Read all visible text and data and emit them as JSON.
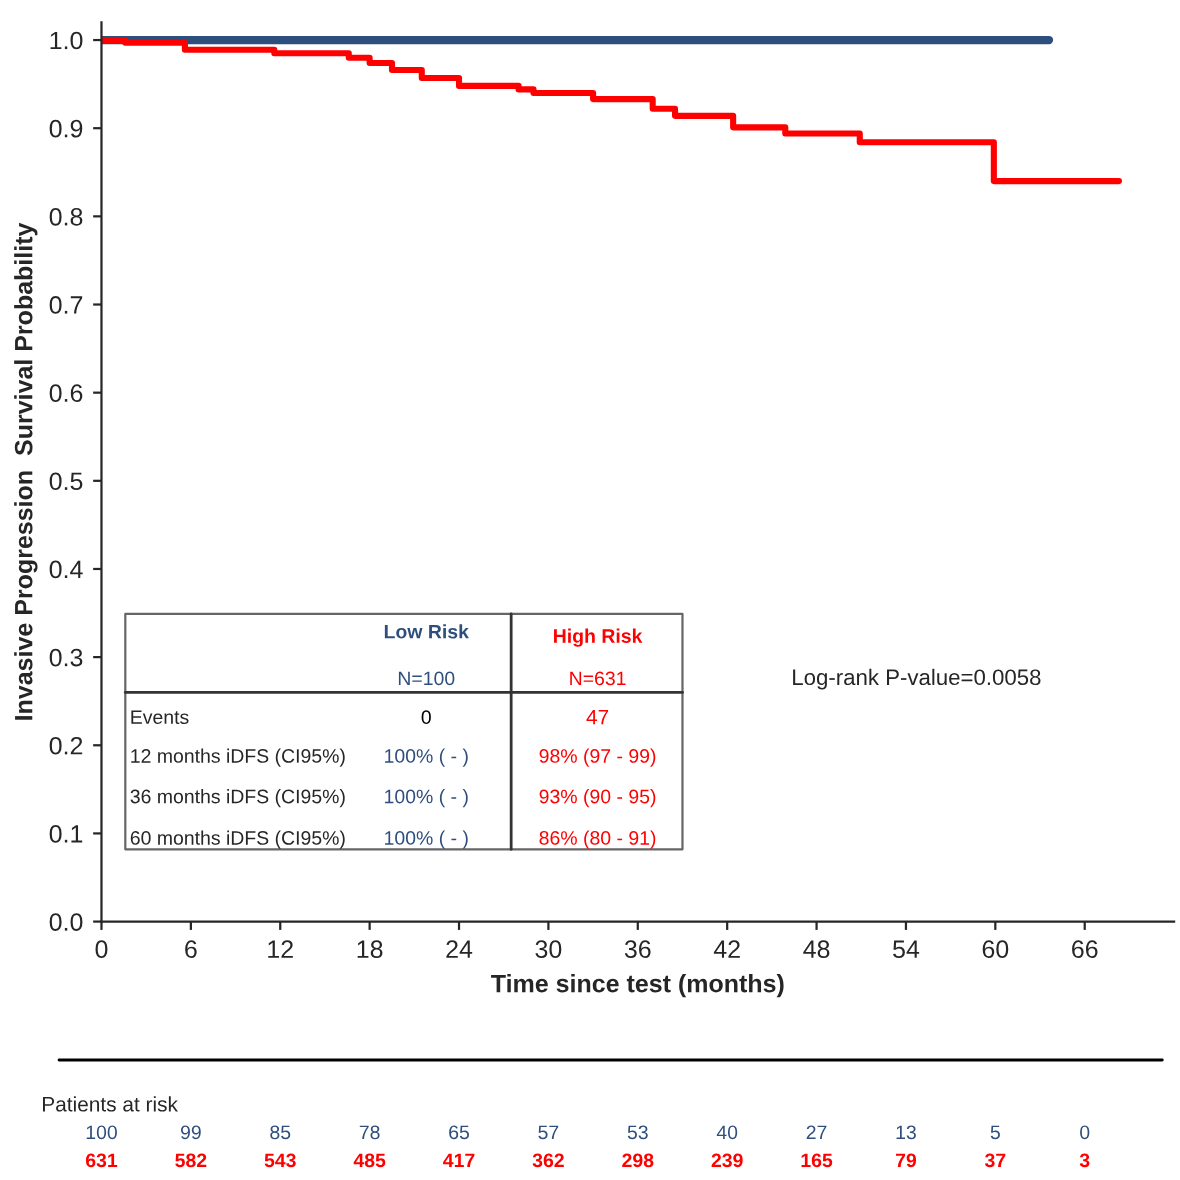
{
  "chart_data": {
    "type": "step",
    "xlabel": "Time since test (months)",
    "ylabel": "Invasive Progression  Survival Probability",
    "series": [
      {
        "name": "Low Risk",
        "color": "#2e4e7e",
        "x": [
          0,
          63.6
        ],
        "values": [
          1.0,
          1.0
        ]
      },
      {
        "name": "High Risk",
        "color": "#ff0000",
        "x": [
          0,
          1.6,
          5.6,
          11.6,
          16.6,
          18,
          19.5,
          21.5,
          24,
          28,
          29,
          33,
          37,
          38.5,
          42.4,
          45.9,
          50.9,
          59.9,
          68.3
        ],
        "values": [
          1.0,
          0.997,
          0.989,
          0.985,
          0.98,
          0.974,
          0.966,
          0.957,
          0.948,
          0.944,
          0.94,
          0.933,
          0.922,
          0.914,
          0.901,
          0.894,
          0.884,
          0.84,
          0.84
        ]
      }
    ],
    "xlim": [
      0,
      72
    ],
    "xticks": [
      0,
      6,
      12,
      18,
      24,
      30,
      36,
      42,
      48,
      54,
      60,
      66
    ],
    "ylim": [
      0,
      1.02
    ],
    "yticks": [
      {
        "value": 0,
        "label": "0.0"
      },
      0.1,
      0.2,
      0.3,
      0.4,
      0.5,
      0.6,
      0.7,
      0.8,
      0.9,
      {
        "value": 1,
        "label": "1.0"
      }
    ],
    "grid": false,
    "legend": false,
    "annotations": [
      "Log-rank P-value=0.0058",
      "N=100",
      "N=631",
      "Events",
      "0",
      "47",
      "12 months iDFS (CI95%)",
      "100% ( - )",
      "98% (97 - 99)",
      "36 months iDFS (CI95%)",
      "100% ( - )",
      "93% (90 - 95)",
      "60 months iDFS (CI95%)",
      "100% ( - )",
      "86% (80 - 91)",
      "Patients at risk",
      "100",
      "99",
      "85",
      "78",
      "65",
      "57",
      "53",
      "40",
      "27",
      "13",
      "5",
      "0",
      "631",
      "582",
      "543",
      "485",
      "417",
      "362",
      "298",
      "239",
      "165",
      "79",
      "37",
      "3"
    ]
  }
}
